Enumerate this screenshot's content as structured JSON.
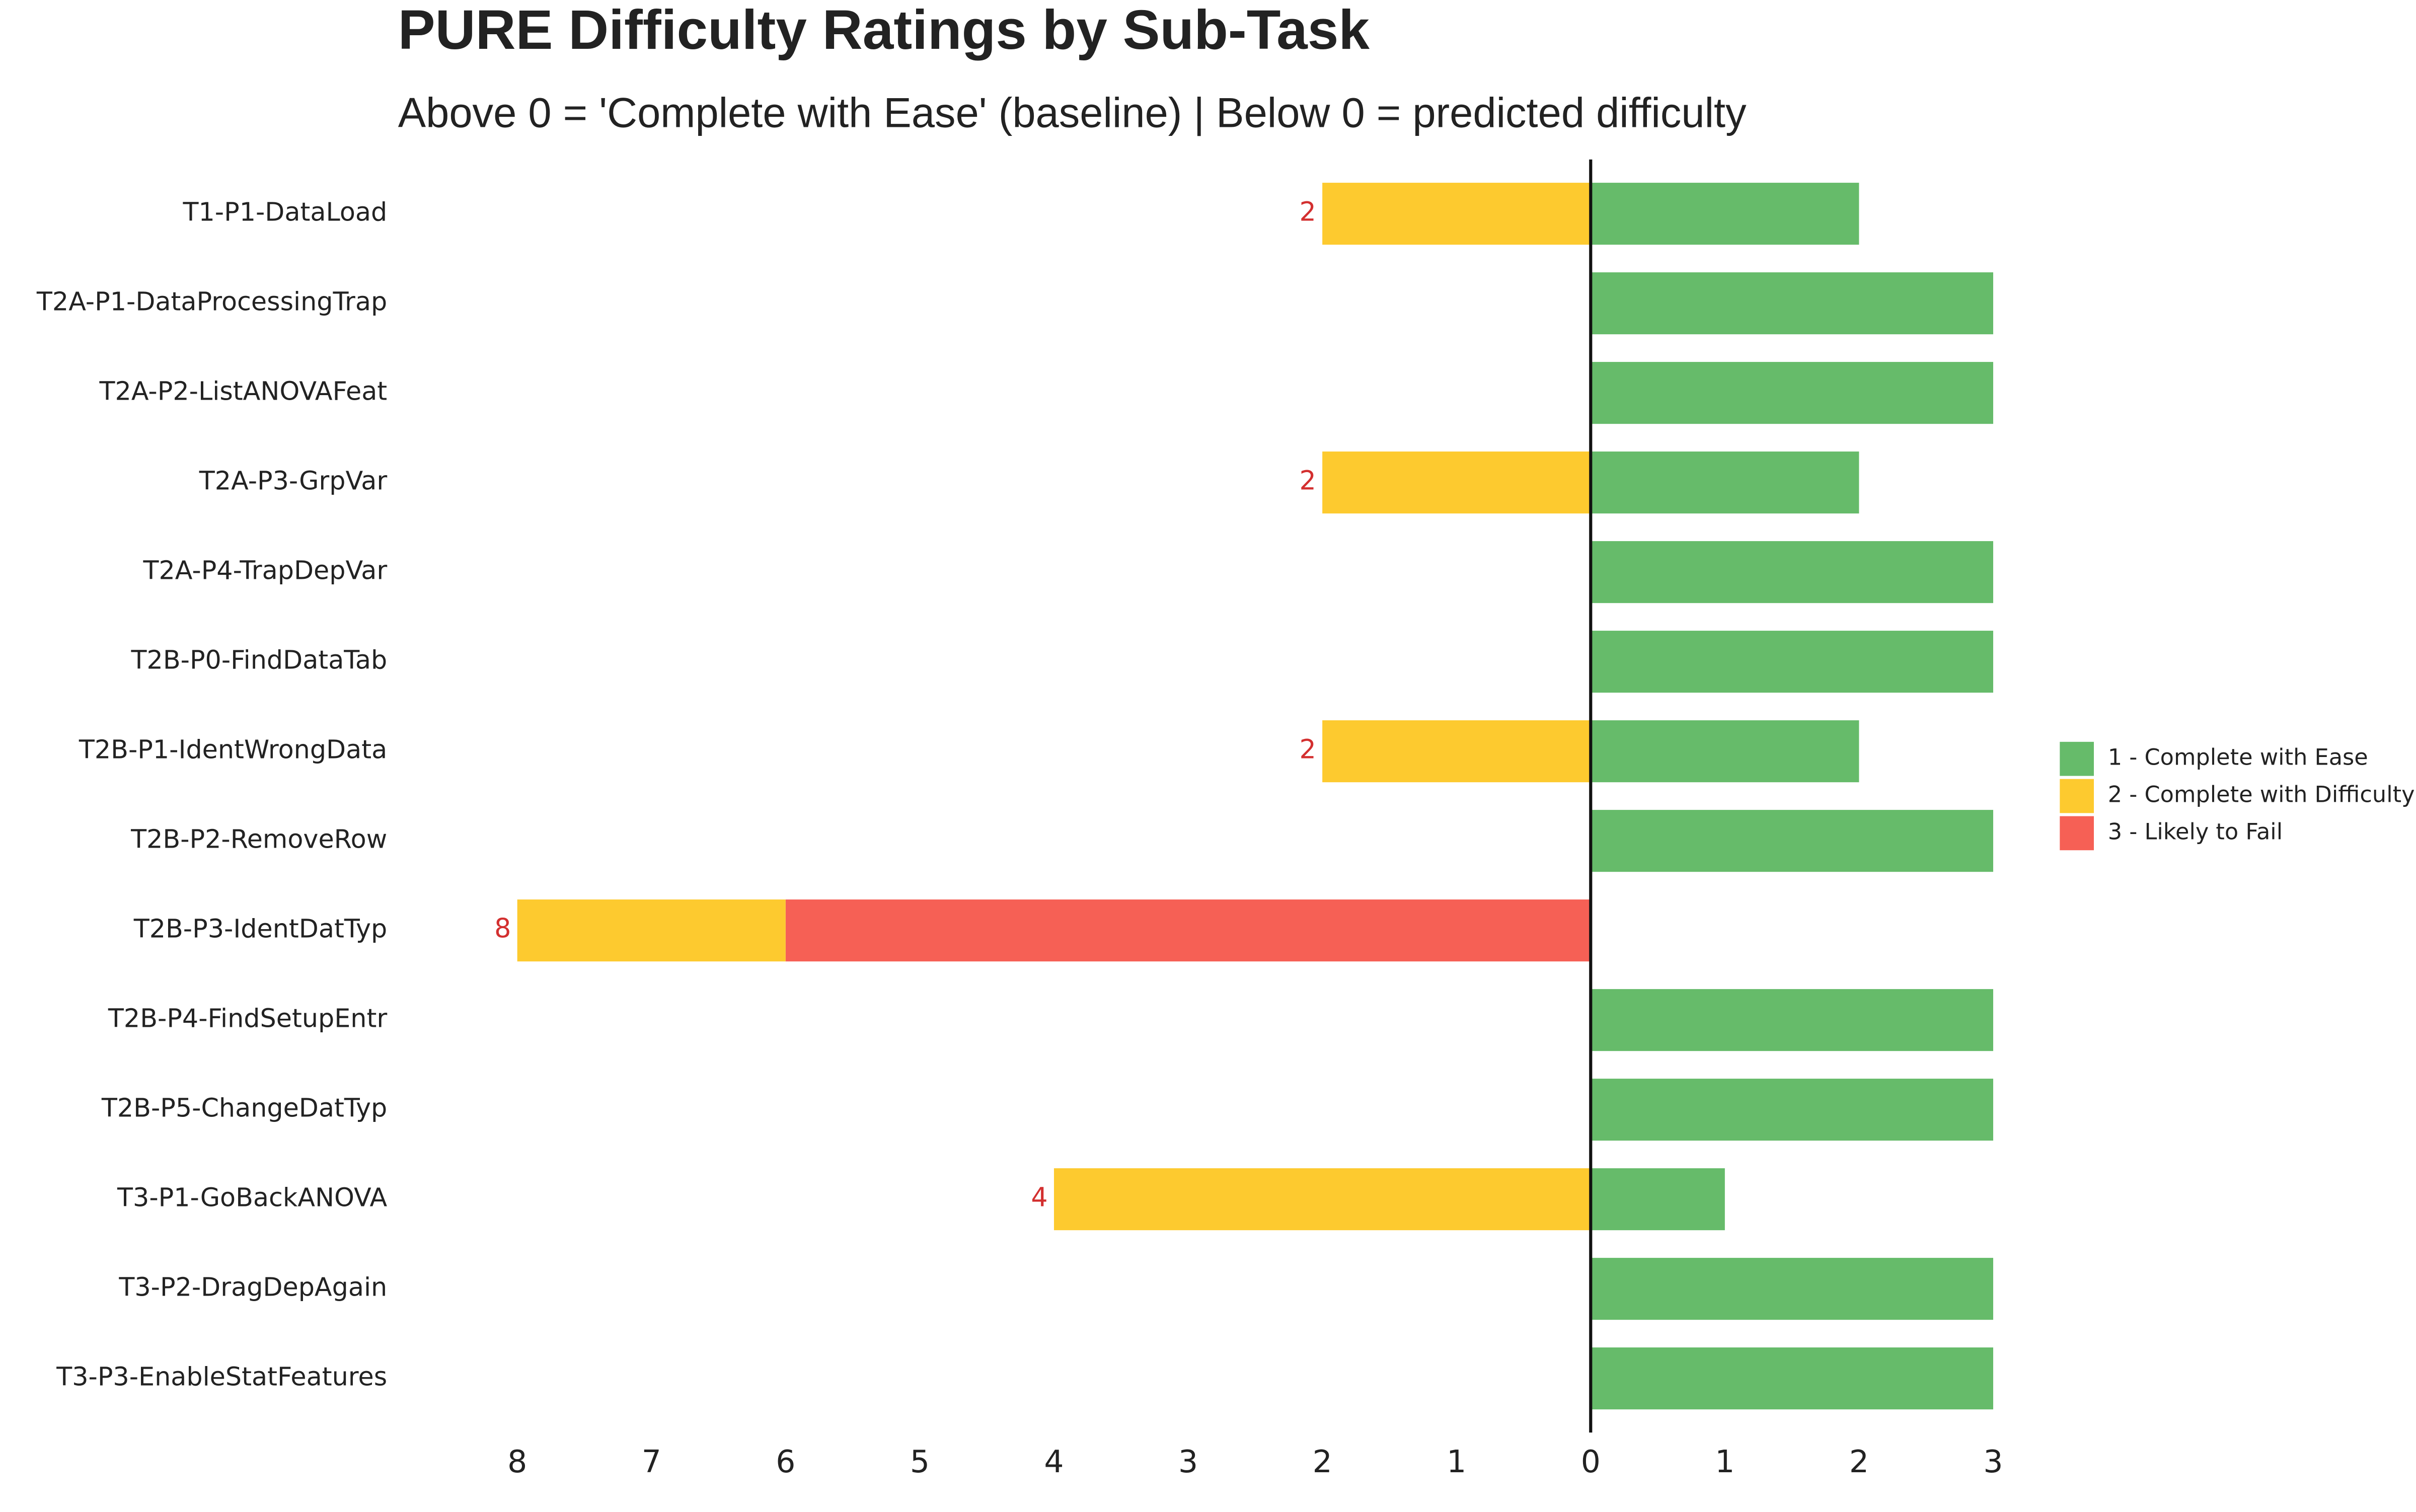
{
  "chart_data": {
    "type": "diverging-bar",
    "title": "PURE Difficulty Ratings by Sub-Task",
    "subtitle": "Above 0 = 'Complete with Ease' (baseline) | Below 0 = predicted difficulty",
    "categories": [
      "T1-P1-DataLoad",
      "T2A-P1-DataProcessingTrap",
      "T2A-P2-ListANOVAFeat",
      "T2A-P3-GrpVar",
      "T2A-P4-TrapDepVar",
      "T2B-P0-FindDataTab",
      "T2B-P1-IdentWrongData",
      "T2B-P2-RemoveRow",
      "T2B-P3-IdentDatTyp",
      "T2B-P4-FindSetupEntr",
      "T2B-P5-ChangeDatTyp",
      "T3-P1-GoBackANOVA",
      "T3-P2-DragDepAgain",
      "T3-P3-EnableStatFeatures"
    ],
    "series": [
      {
        "name": "1 - Complete with Ease",
        "color": "#66bb6a",
        "values": [
          2,
          3,
          3,
          2,
          3,
          3,
          2,
          3,
          0,
          3,
          3,
          1,
          3,
          3
        ]
      },
      {
        "name": "2 - Complete with Difficulty",
        "color": "#fdca2f",
        "values": [
          -2,
          0,
          0,
          -2,
          0,
          0,
          -2,
          0,
          -2,
          0,
          0,
          -4,
          0,
          0
        ]
      },
      {
        "name": "3 - Likely to Fail",
        "color": "#f66055",
        "values": [
          0,
          0,
          0,
          0,
          0,
          0,
          0,
          0,
          -6,
          0,
          0,
          0,
          0,
          0
        ]
      }
    ],
    "difficulty_totals": [
      2,
      null,
      null,
      2,
      null,
      null,
      2,
      null,
      8,
      null,
      null,
      4,
      null,
      null
    ],
    "total_label_color": "#d32f2f",
    "xlim": [
      -8,
      3
    ],
    "xticks": [
      {
        "value": -8,
        "label": "8"
      },
      {
        "value": -7,
        "label": "7"
      },
      {
        "value": -6,
        "label": "6"
      },
      {
        "value": -5,
        "label": "5"
      },
      {
        "value": -4,
        "label": "4"
      },
      {
        "value": -3,
        "label": "3"
      },
      {
        "value": -2,
        "label": "2"
      },
      {
        "value": -1,
        "label": "1"
      },
      0,
      1,
      2,
      3
    ],
    "legend": "right"
  }
}
